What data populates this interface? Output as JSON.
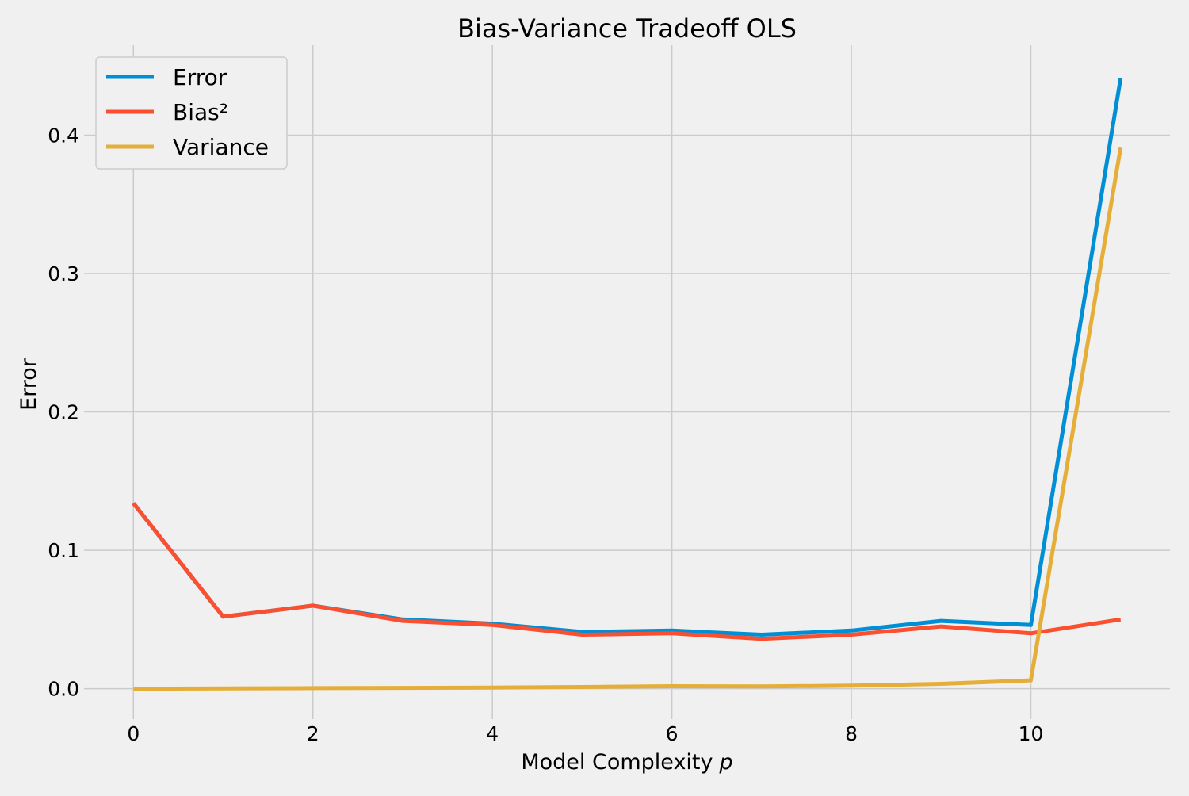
{
  "chart_data": {
    "type": "line",
    "title": "Bias-Variance Tradeoff OLS",
    "xlabel": "Model Complexity",
    "xlabel_var": "p",
    "ylabel": "Error",
    "xlim": [
      -0.55,
      11.55
    ],
    "ylim": [
      -0.022,
      0.465
    ],
    "x_ticks": [
      0,
      2,
      4,
      6,
      8,
      10
    ],
    "y_ticks": [
      0.0,
      0.1,
      0.2,
      0.3,
      0.4
    ],
    "x_tick_labels": [
      "0",
      "2",
      "4",
      "6",
      "8",
      "10"
    ],
    "y_tick_labels": [
      "0.0",
      "0.1",
      "0.2",
      "0.3",
      "0.4"
    ],
    "grid": true,
    "legend_position": "top-left",
    "x": [
      0,
      1,
      2,
      3,
      4,
      5,
      6,
      7,
      8,
      9,
      10,
      11
    ],
    "series": [
      {
        "name": "Error",
        "color": "#008fd5",
        "values": [
          0.134,
          0.052,
          0.06,
          0.05,
          0.047,
          0.041,
          0.042,
          0.039,
          0.042,
          0.049,
          0.046,
          0.441
        ]
      },
      {
        "name": "Bias²",
        "color": "#fc4f30",
        "values": [
          0.134,
          0.052,
          0.06,
          0.049,
          0.046,
          0.039,
          0.04,
          0.036,
          0.039,
          0.045,
          0.04,
          0.05
        ]
      },
      {
        "name": "Variance",
        "color": "#e5ae38",
        "values": [
          0.0,
          0.0002,
          0.0004,
          0.0006,
          0.0008,
          0.0012,
          0.0018,
          0.0016,
          0.0022,
          0.0035,
          0.006,
          0.391
        ]
      }
    ]
  }
}
